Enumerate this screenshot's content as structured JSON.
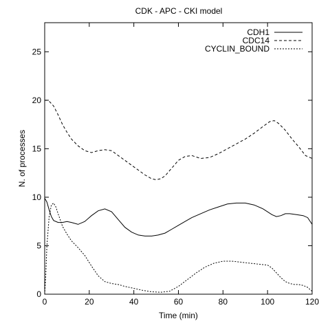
{
  "chart_data": {
    "type": "line",
    "title": "CDK - APC - CKI model",
    "xlabel": "Time (min)",
    "ylabel": "N. of processes",
    "xlim": [
      0,
      120
    ],
    "ylim": [
      0,
      28
    ],
    "xticks": [
      0,
      20,
      40,
      60,
      80,
      100,
      120
    ],
    "xtick_labels": [
      "0",
      "20",
      "40",
      "60",
      "80",
      "100",
      "120"
    ],
    "yticks": [
      0,
      5,
      10,
      15,
      20,
      25
    ],
    "ytick_labels": [
      "0",
      "5",
      "10",
      "15",
      "20",
      "25"
    ],
    "grid": false,
    "legend_position": "top-right",
    "series": [
      {
        "name": "CDH1",
        "style": "solid",
        "x": [
          0,
          1,
          2,
          3,
          4,
          6,
          8,
          10,
          12,
          15,
          18,
          21,
          24,
          27,
          30,
          33,
          36,
          39,
          42,
          45,
          48,
          51,
          54,
          57,
          60,
          63,
          66,
          70,
          74,
          78,
          82,
          86,
          90,
          94,
          98,
          102,
          104,
          106,
          108,
          110,
          113,
          116,
          118,
          120
        ],
        "y": [
          9.9,
          9.5,
          8.7,
          8.0,
          7.6,
          7.4,
          7.4,
          7.5,
          7.4,
          7.2,
          7.5,
          8.1,
          8.6,
          8.8,
          8.5,
          7.7,
          6.9,
          6.4,
          6.1,
          6.0,
          6.0,
          6.1,
          6.3,
          6.7,
          7.1,
          7.5,
          7.9,
          8.3,
          8.7,
          9.0,
          9.3,
          9.4,
          9.4,
          9.2,
          8.8,
          8.2,
          8.0,
          8.1,
          8.3,
          8.3,
          8.2,
          8.1,
          7.9,
          7.2
        ]
      },
      {
        "name": "CDC14",
        "style": "dashed",
        "x": [
          0,
          1,
          2,
          4,
          6,
          8,
          10,
          12,
          15,
          18,
          21,
          24,
          27,
          30,
          33,
          36,
          39,
          42,
          45,
          48,
          50,
          52,
          54,
          57,
          60,
          63,
          66,
          70,
          74,
          78,
          82,
          86,
          90,
          94,
          98,
          101,
          103,
          105,
          108,
          111,
          114,
          117,
          120
        ],
        "y": [
          20.0,
          20.0,
          19.9,
          19.4,
          18.5,
          17.5,
          16.7,
          16.0,
          15.3,
          14.8,
          14.6,
          14.8,
          14.9,
          14.8,
          14.3,
          13.8,
          13.3,
          12.8,
          12.3,
          11.9,
          11.8,
          11.9,
          12.2,
          13.0,
          13.8,
          14.2,
          14.3,
          14.0,
          14.1,
          14.5,
          15.0,
          15.5,
          16.0,
          16.6,
          17.3,
          17.8,
          17.9,
          17.6,
          16.9,
          16.0,
          15.2,
          14.3,
          14.0
        ]
      },
      {
        "name": "CYCLIN_BOUND",
        "style": "dotted",
        "x": [
          0,
          0.5,
          1,
          2,
          3,
          4,
          5,
          6,
          8,
          10,
          12,
          15,
          18,
          21,
          24,
          27,
          30,
          33,
          36,
          40,
          44,
          48,
          52,
          56,
          60,
          64,
          68,
          72,
          76,
          80,
          84,
          88,
          92,
          96,
          100,
          102,
          104,
          106,
          108,
          110,
          112,
          114,
          116,
          118,
          120
        ],
        "y": [
          0.0,
          2.0,
          5.0,
          8.0,
          9.2,
          9.4,
          9.0,
          8.3,
          7.0,
          6.2,
          5.5,
          4.8,
          4.0,
          2.9,
          1.9,
          1.3,
          1.1,
          1.0,
          0.8,
          0.6,
          0.4,
          0.25,
          0.2,
          0.3,
          0.8,
          1.5,
          2.2,
          2.8,
          3.2,
          3.4,
          3.4,
          3.3,
          3.2,
          3.1,
          3.0,
          2.7,
          2.2,
          1.7,
          1.3,
          1.1,
          1.0,
          1.0,
          0.9,
          0.7,
          0.3
        ]
      }
    ]
  }
}
